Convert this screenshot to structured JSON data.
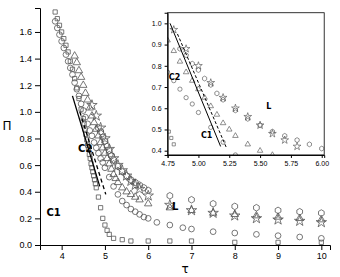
{
  "chart_data": [
    {
      "type": "scatter",
      "xlabel": "τ",
      "ylabel": "Π",
      "xlim": [
        3.5,
        10.2
      ],
      "ylim": [
        0.0,
        1.78
      ],
      "xticks": [
        4,
        5,
        6,
        7,
        8,
        9,
        10
      ],
      "yticks": [
        {
          "value": 0.0,
          "label": "0.0"
        },
        0.2,
        0.4,
        0.6,
        0.8,
        {
          "value": 1.0,
          "label": "1.0"
        },
        1.2,
        1.4,
        1.6
      ],
      "series": [
        {
          "marker": "square",
          "color": "#555555",
          "x": [
            3.85,
            3.9,
            3.95,
            4.0,
            4.05,
            4.1,
            4.15,
            4.2,
            4.25,
            4.3,
            4.35,
            4.4,
            4.45,
            4.5,
            4.52,
            4.54,
            4.56,
            4.58,
            4.6,
            4.62,
            4.64,
            4.66,
            4.68,
            4.7,
            4.72,
            4.74,
            4.76,
            4.78,
            4.8,
            4.85,
            4.9,
            4.95,
            5.0,
            5.05,
            5.1,
            5.2,
            5.4,
            5.6,
            6.0,
            6.5,
            7.0,
            8.0,
            9.0,
            10.0
          ],
          "values": [
            1.75,
            1.7,
            1.65,
            1.6,
            1.55,
            1.5,
            1.45,
            1.38,
            1.32,
            1.25,
            1.18,
            1.1,
            1.02,
            0.95,
            0.91,
            0.87,
            0.83,
            0.79,
            0.75,
            0.72,
            0.68,
            0.65,
            0.61,
            0.58,
            0.55,
            0.52,
            0.49,
            0.46,
            0.43,
            0.36,
            0.28,
            0.2,
            0.15,
            0.11,
            0.08,
            0.05,
            0.04,
            0.03,
            0.03,
            0.03,
            0.03,
            0.02,
            0.02,
            0.02
          ]
        },
        {
          "marker": "circle",
          "color": "#555555",
          "x": [
            3.85,
            3.9,
            3.95,
            4.0,
            4.05,
            4.1,
            4.15,
            4.2,
            4.25,
            4.3,
            4.35,
            4.4,
            4.45,
            4.5,
            4.55,
            4.6,
            4.65,
            4.7,
            4.75,
            4.8,
            4.85,
            4.9,
            4.95,
            5.0,
            5.1,
            5.2,
            5.3,
            5.4,
            5.5,
            5.6,
            5.7,
            5.8,
            5.9,
            6.0,
            6.2,
            6.5,
            6.8,
            7.0,
            7.5,
            8.0,
            8.5,
            9.0,
            9.5,
            10.0
          ],
          "values": [
            1.68,
            1.63,
            1.58,
            1.53,
            1.48,
            1.43,
            1.38,
            1.33,
            1.28,
            1.22,
            1.17,
            1.12,
            1.06,
            1.01,
            0.96,
            0.91,
            0.86,
            0.82,
            0.77,
            0.73,
            0.69,
            0.65,
            0.62,
            0.58,
            0.51,
            0.44,
            0.38,
            0.33,
            0.3,
            0.27,
            0.25,
            0.23,
            0.21,
            0.2,
            0.17,
            0.15,
            0.13,
            0.12,
            0.1,
            0.09,
            0.08,
            0.07,
            0.06,
            0.05
          ]
        },
        {
          "marker": "triangle",
          "color": "#555555",
          "x": [
            4.3,
            4.35,
            4.4,
            4.45,
            4.5,
            4.55,
            4.6,
            4.65,
            4.7,
            4.75,
            4.8,
            4.85,
            4.9,
            4.95,
            5.0,
            5.05,
            5.1,
            5.15,
            5.2,
            5.25,
            5.3,
            5.4,
            5.5,
            5.6,
            5.7,
            5.8,
            6.0,
            6.5,
            7.0,
            7.5,
            8.0,
            8.5,
            9.0,
            9.5,
            10.0
          ],
          "values": [
            1.42,
            1.37,
            1.31,
            1.26,
            1.2,
            1.14,
            1.09,
            1.03,
            0.97,
            0.92,
            0.87,
            0.82,
            0.77,
            0.73,
            0.69,
            0.65,
            0.61,
            0.57,
            0.53,
            0.5,
            0.47,
            0.43,
            0.4,
            0.38,
            0.36,
            0.34,
            0.31,
            0.28,
            0.26,
            0.24,
            0.23,
            0.22,
            0.21,
            0.2,
            0.19
          ]
        },
        {
          "marker": "star",
          "color": "#555555",
          "x": [
            4.7,
            4.8,
            4.9,
            5.0,
            5.1,
            5.2,
            5.3,
            5.4,
            5.5,
            5.6,
            5.7,
            5.8,
            6.0,
            6.5,
            7.0,
            7.5,
            8.0,
            8.5,
            9.0,
            9.5,
            10.0
          ],
          "values": [
            1.05,
            0.97,
            0.88,
            0.8,
            0.72,
            0.65,
            0.6,
            0.56,
            0.52,
            0.48,
            0.45,
            0.42,
            0.37,
            0.3,
            0.26,
            0.24,
            0.22,
            0.2,
            0.19,
            0.18,
            0.17
          ]
        },
        {
          "marker": "hexagon",
          "color": "#555555",
          "x": [
            4.85,
            4.9,
            4.95,
            5.0,
            5.05,
            5.1,
            5.15,
            5.2,
            5.3,
            5.4,
            5.5,
            5.6,
            5.7,
            5.8,
            5.9,
            6.0,
            6.5,
            7.0,
            7.5,
            8.0,
            8.5,
            9.0,
            9.5,
            10.0
          ],
          "values": [
            0.88,
            0.85,
            0.81,
            0.78,
            0.74,
            0.71,
            0.67,
            0.64,
            0.59,
            0.55,
            0.52,
            0.49,
            0.47,
            0.45,
            0.43,
            0.41,
            0.37,
            0.34,
            0.31,
            0.29,
            0.28,
            0.26,
            0.25,
            0.24
          ]
        },
        {
          "type": "line",
          "line_style": "solid",
          "color": "#000000",
          "x": [
            4.25,
            4.88
          ],
          "values": [
            1.12,
            0.44
          ]
        },
        {
          "type": "line",
          "line_style": "dashed",
          "color": "#000000",
          "x": [
            4.42,
            5.02
          ],
          "values": [
            1.0,
            0.38
          ]
        }
      ],
      "annotations": [
        {
          "text": "C1",
          "x": 3.65,
          "y": 0.22
        },
        {
          "text": "C2",
          "x": 4.38,
          "y": 0.7
        },
        {
          "text": "L",
          "x": 6.55,
          "y": 0.26
        }
      ]
    },
    {
      "type": "scatter",
      "xlim": [
        4.75,
        6.02
      ],
      "ylim": [
        0.38,
        1.05
      ],
      "xticks": [
        4.75,
        {
          "value": 5.0,
          "label": "5.00"
        },
        5.25,
        {
          "value": 5.5,
          "label": "5.50"
        },
        5.75,
        {
          "value": 6.0,
          "label": "6.00"
        }
      ],
      "yticks": [
        0.4,
        0.5,
        0.6,
        0.7,
        0.8,
        0.9,
        {
          "value": 1.0,
          "label": "1.0"
        }
      ],
      "series": [
        {
          "marker": "square",
          "color": "#555555",
          "x": [
            4.76,
            4.78,
            4.8
          ],
          "values": [
            0.49,
            0.46,
            0.43
          ]
        },
        {
          "marker": "circle",
          "color": "#555555",
          "x": [
            4.75,
            4.8,
            4.85,
            4.9,
            4.95,
            5.0,
            5.1,
            5.2,
            5.3
          ],
          "values": [
            0.77,
            0.73,
            0.69,
            0.65,
            0.62,
            0.58,
            0.51,
            0.44,
            0.38
          ]
        },
        {
          "marker": "triangle",
          "color": "#555555",
          "x": [
            4.75,
            4.8,
            4.85,
            4.9,
            4.95,
            5.0,
            5.05,
            5.1,
            5.15,
            5.2,
            5.25,
            5.3,
            5.4,
            5.5,
            5.6
          ],
          "values": [
            0.92,
            0.87,
            0.82,
            0.77,
            0.73,
            0.69,
            0.65,
            0.61,
            0.57,
            0.53,
            0.5,
            0.47,
            0.43,
            0.4,
            0.38
          ]
        },
        {
          "marker": "star",
          "color": "#555555",
          "x": [
            4.8,
            4.9,
            5.0,
            5.1,
            5.2,
            5.3,
            5.4,
            5.5,
            5.6,
            5.7,
            5.8
          ],
          "values": [
            0.97,
            0.88,
            0.8,
            0.72,
            0.65,
            0.6,
            0.56,
            0.52,
            0.48,
            0.45,
            0.42
          ]
        },
        {
          "marker": "hexagon",
          "color": "#555555",
          "x": [
            4.85,
            4.9,
            4.95,
            5.0,
            5.05,
            5.1,
            5.15,
            5.2,
            5.3,
            5.4,
            5.5,
            5.6,
            5.7,
            5.8,
            5.9,
            6.0
          ],
          "values": [
            0.88,
            0.85,
            0.81,
            0.78,
            0.74,
            0.71,
            0.67,
            0.64,
            0.59,
            0.55,
            0.52,
            0.49,
            0.47,
            0.45,
            0.43,
            0.41
          ]
        },
        {
          "type": "line",
          "line_style": "solid",
          "color": "#000000",
          "x": [
            4.77,
            5.18
          ],
          "values": [
            1.0,
            0.42
          ]
        },
        {
          "type": "line",
          "line_style": "dashed",
          "color": "#000000",
          "x": [
            4.83,
            5.23
          ],
          "values": [
            0.95,
            0.41
          ]
        }
      ],
      "annotations": [
        {
          "text": "C1",
          "x": 5.02,
          "y": 0.46
        },
        {
          "text": "C2",
          "x": 4.76,
          "y": 0.735
        },
        {
          "text": "L",
          "x": 5.55,
          "y": 0.595
        }
      ]
    }
  ]
}
